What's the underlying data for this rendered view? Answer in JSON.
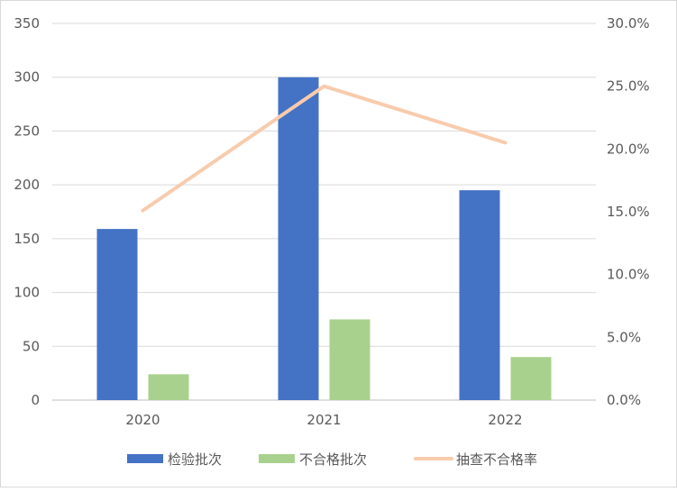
{
  "chart_data": {
    "type": "bar+line",
    "categories": [
      "2020",
      "2021",
      "2022"
    ],
    "series": [
      {
        "name": "检验批次",
        "type": "bar",
        "axis": "left",
        "color": "#4472c4",
        "values": [
          159,
          300,
          195
        ]
      },
      {
        "name": "不合格批次",
        "type": "bar",
        "axis": "left",
        "color": "#a9d18e",
        "values": [
          24,
          75,
          40
        ]
      },
      {
        "name": "抽查不合格率",
        "type": "line",
        "axis": "right",
        "color": "#f8cbad",
        "values": [
          15.1,
          25.0,
          20.5
        ]
      }
    ],
    "ylim": [
      0,
      350
    ],
    "yticks": [
      "0",
      "50",
      "100",
      "150",
      "200",
      "250",
      "300",
      "350"
    ],
    "y2lim": [
      0,
      30
    ],
    "y2ticks": [
      "0.0%",
      "5.0%",
      "10.0%",
      "15.0%",
      "20.0%",
      "25.0%",
      "30.0%"
    ],
    "grid": true,
    "legend": "bottom"
  }
}
